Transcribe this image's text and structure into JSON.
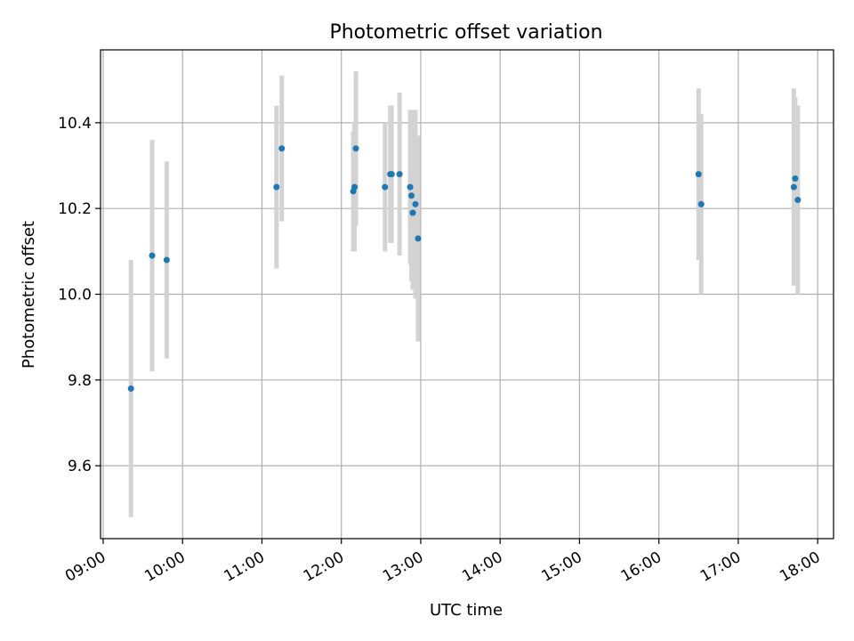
{
  "chart_data": {
    "type": "scatter",
    "title": "Photometric offset variation",
    "xlabel": "UTC time",
    "ylabel": "Photometric offset",
    "xlim": [
      "08:58",
      "18:12"
    ],
    "ylim": [
      9.43,
      10.57
    ],
    "x_ticks": [
      "09:00",
      "10:00",
      "11:00",
      "12:00",
      "13:00",
      "14:00",
      "15:00",
      "16:00",
      "17:00",
      "18:00"
    ],
    "y_ticks": [
      "9.6",
      "9.8",
      "10.0",
      "10.2",
      "10.4"
    ],
    "grid": true,
    "colors": {
      "point": "#1f77b4",
      "error_bar": "#d3d3d3"
    },
    "series": [
      {
        "x": [
          "09:21",
          "09:37",
          "09:48",
          "11:11",
          "11:15",
          "12:09",
          "12:10",
          "12:11",
          "12:33",
          "12:37",
          "12:38",
          "12:44",
          "12:52",
          "12:53",
          "12:54",
          "12:54",
          "12:56",
          "12:58",
          "16:30",
          "16:32",
          "17:42",
          "17:43",
          "17:45"
        ],
        "y": [
          9.78,
          10.09,
          10.08,
          10.25,
          10.34,
          10.24,
          10.25,
          10.34,
          10.25,
          10.28,
          10.28,
          10.28,
          10.25,
          10.23,
          10.19,
          10.19,
          10.21,
          10.13,
          10.28,
          10.21,
          10.25,
          10.27,
          10.22
        ],
        "yerr": [
          0.3,
          0.27,
          0.23,
          0.19,
          0.17,
          0.14,
          0.15,
          0.18,
          0.15,
          0.16,
          0.16,
          0.19,
          0.18,
          0.2,
          0.18,
          0.17,
          0.22,
          0.24,
          0.2,
          0.21,
          0.23,
          0.19,
          0.22
        ]
      }
    ]
  }
}
